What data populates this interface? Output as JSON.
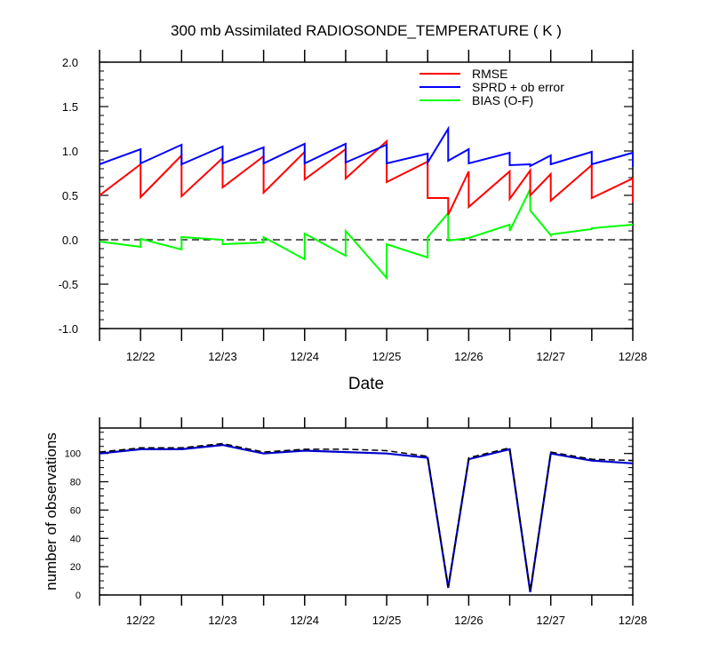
{
  "chart_data": [
    {
      "type": "line",
      "title": "300 mb Assimilated RADIOSONDE_TEMPERATURE ( K )",
      "xlabel": "Date",
      "ylabel": "",
      "ylim": [
        -1.0,
        2.0
      ],
      "xlim": [
        "2011-12-21 12:00",
        "2011-12-28 00:00"
      ],
      "yticks": [
        "-1.0",
        "-0.5",
        "0.0",
        "0.5",
        "1.0",
        "1.5",
        "2.0"
      ],
      "xtick_labels": [
        "12/22",
        "12/23",
        "12/24",
        "12/25",
        "12/26",
        "12/27",
        "12/28"
      ],
      "legend": "top-right",
      "reference_line": {
        "y": 0.0,
        "style": "dashed"
      },
      "series": [
        {
          "name": "RMSE",
          "color": "#ff0000",
          "x": [
            "12/21 12:00",
            "12/22 00:00",
            "12/22 00:00",
            "12/22 12:00",
            "12/22 12:00",
            "12/23 00:00",
            "12/23 00:00",
            "12/23 12:00",
            "12/23 12:00",
            "12/24 00:00",
            "12/24 00:00",
            "12/24 12:00",
            "12/24 12:00",
            "12/25 00:00",
            "12/25 00:00",
            "12/25 12:00",
            "12/25 12:00",
            "12/25 18:00",
            "12/25 18:00",
            "12/26 00:00",
            "12/26 00:00",
            "12/26 12:00",
            "12/26 12:00",
            "12/26 18:00",
            "12/26 18:00",
            "12/27 00:00",
            "12/27 00:00",
            "12/27 12:00",
            "12/27 12:00",
            "12/28 00:00",
            "12/28 00:00"
          ],
          "y": [
            0.5,
            0.85,
            0.48,
            0.95,
            0.49,
            0.92,
            0.59,
            0.94,
            0.53,
            0.99,
            0.68,
            1.02,
            0.69,
            1.11,
            0.65,
            0.88,
            0.47,
            0.47,
            0.28,
            0.77,
            0.37,
            0.77,
            0.46,
            0.78,
            0.5,
            0.74,
            0.44,
            0.84,
            0.47,
            0.69,
            0.42
          ]
        },
        {
          "name": "SPRD + ob error",
          "color": "#0000ff",
          "x": [
            "12/21 12:00",
            "12/22 00:00",
            "12/22 00:00",
            "12/22 12:00",
            "12/22 12:00",
            "12/23 00:00",
            "12/23 00:00",
            "12/23 12:00",
            "12/23 12:00",
            "12/24 00:00",
            "12/24 00:00",
            "12/24 12:00",
            "12/24 12:00",
            "12/25 00:00",
            "12/25 00:00",
            "12/25 12:00",
            "12/25 12:00",
            "12/25 18:00",
            "12/25 18:00",
            "12/26 00:00",
            "12/26 00:00",
            "12/26 12:00",
            "12/26 12:00",
            "12/26 18:00",
            "12/26 18:00",
            "12/27 00:00",
            "12/27 00:00",
            "12/27 12:00",
            "12/27 12:00",
            "12/28 00:00",
            "12/28 00:00"
          ],
          "y": [
            0.85,
            1.02,
            0.86,
            1.07,
            0.85,
            1.05,
            0.86,
            1.04,
            0.86,
            1.08,
            0.86,
            1.08,
            0.87,
            1.07,
            0.86,
            0.97,
            0.87,
            1.25,
            0.89,
            1.02,
            0.86,
            0.98,
            0.84,
            0.85,
            0.83,
            0.95,
            0.85,
            0.99,
            0.85,
            0.98,
            0.82
          ]
        },
        {
          "name": "BIAS (O-F)",
          "color": "#00ff00",
          "x": [
            "12/21 12:00",
            "12/22 00:00",
            "12/22 00:00",
            "12/22 12:00",
            "12/22 12:00",
            "12/23 00:00",
            "12/23 00:00",
            "12/23 12:00",
            "12/23 12:00",
            "12/24 00:00",
            "12/24 00:00",
            "12/24 12:00",
            "12/24 12:00",
            "12/25 00:00",
            "12/25 00:00",
            "12/25 12:00",
            "12/25 12:00",
            "12/25 18:00",
            "12/25 18:00",
            "12/26 00:00",
            "12/26 00:00",
            "12/26 12:00",
            "12/26 12:00",
            "12/26 18:00",
            "12/26 18:00",
            "12/27 00:00",
            "12/27 00:00",
            "12/27 12:00",
            "12/27 12:00",
            "12/28 00:00",
            "12/28 00:00"
          ],
          "y": [
            -0.02,
            -0.08,
            0.01,
            -0.11,
            0.03,
            0.0,
            -0.05,
            -0.03,
            0.03,
            -0.22,
            0.07,
            -0.18,
            0.1,
            -0.43,
            -0.05,
            -0.2,
            0.03,
            0.3,
            -0.01,
            0.02,
            0.02,
            0.17,
            0.1,
            0.57,
            0.33,
            0.05,
            0.06,
            0.12,
            0.13,
            0.17,
            0.17
          ]
        }
      ]
    },
    {
      "type": "line",
      "title": "",
      "xlabel": "",
      "ylabel": "number of observations",
      "ylim": [
        0,
        118
      ],
      "xlim": [
        "2011-12-21 12:00",
        "2011-12-28 00:00"
      ],
      "yticks": [
        "0",
        "20",
        "40",
        "60",
        "80",
        "100"
      ],
      "xtick_labels": [
        "12/22",
        "12/23",
        "12/24",
        "12/25",
        "12/26",
        "12/27",
        "12/28"
      ],
      "series": [
        {
          "color": "#0000cc",
          "style": "solid",
          "x": [
            "12/21 12:00",
            "12/22 00:00",
            "12/22 12:00",
            "12/23 00:00",
            "12/23 12:00",
            "12/24 00:00",
            "12/24 12:00",
            "12/25 00:00",
            "12/25 12:00",
            "12/25 18:00",
            "12/26 00:00",
            "12/26 12:00",
            "12/26 18:00",
            "12/27 00:00",
            "12/27 12:00",
            "12/28 00:00"
          ],
          "y": [
            100,
            103,
            103,
            106,
            100,
            102,
            101,
            100,
            97,
            5,
            96,
            103,
            2,
            100,
            95,
            93
          ]
        },
        {
          "color": "#000000",
          "style": "dashed",
          "x": [
            "12/21 12:00",
            "12/22 00:00",
            "12/22 12:00",
            "12/23 00:00",
            "12/23 12:00",
            "12/24 00:00",
            "12/24 12:00",
            "12/25 00:00",
            "12/25 12:00",
            "12/25 18:00",
            "12/26 00:00",
            "12/26 12:00",
            "12/26 18:00",
            "12/27 00:00",
            "12/27 12:00",
            "12/28 00:00"
          ],
          "y": [
            101,
            104,
            104,
            107,
            101,
            103,
            103,
            102,
            98,
            6,
            97,
            104,
            3,
            101,
            96,
            95
          ]
        }
      ]
    }
  ]
}
